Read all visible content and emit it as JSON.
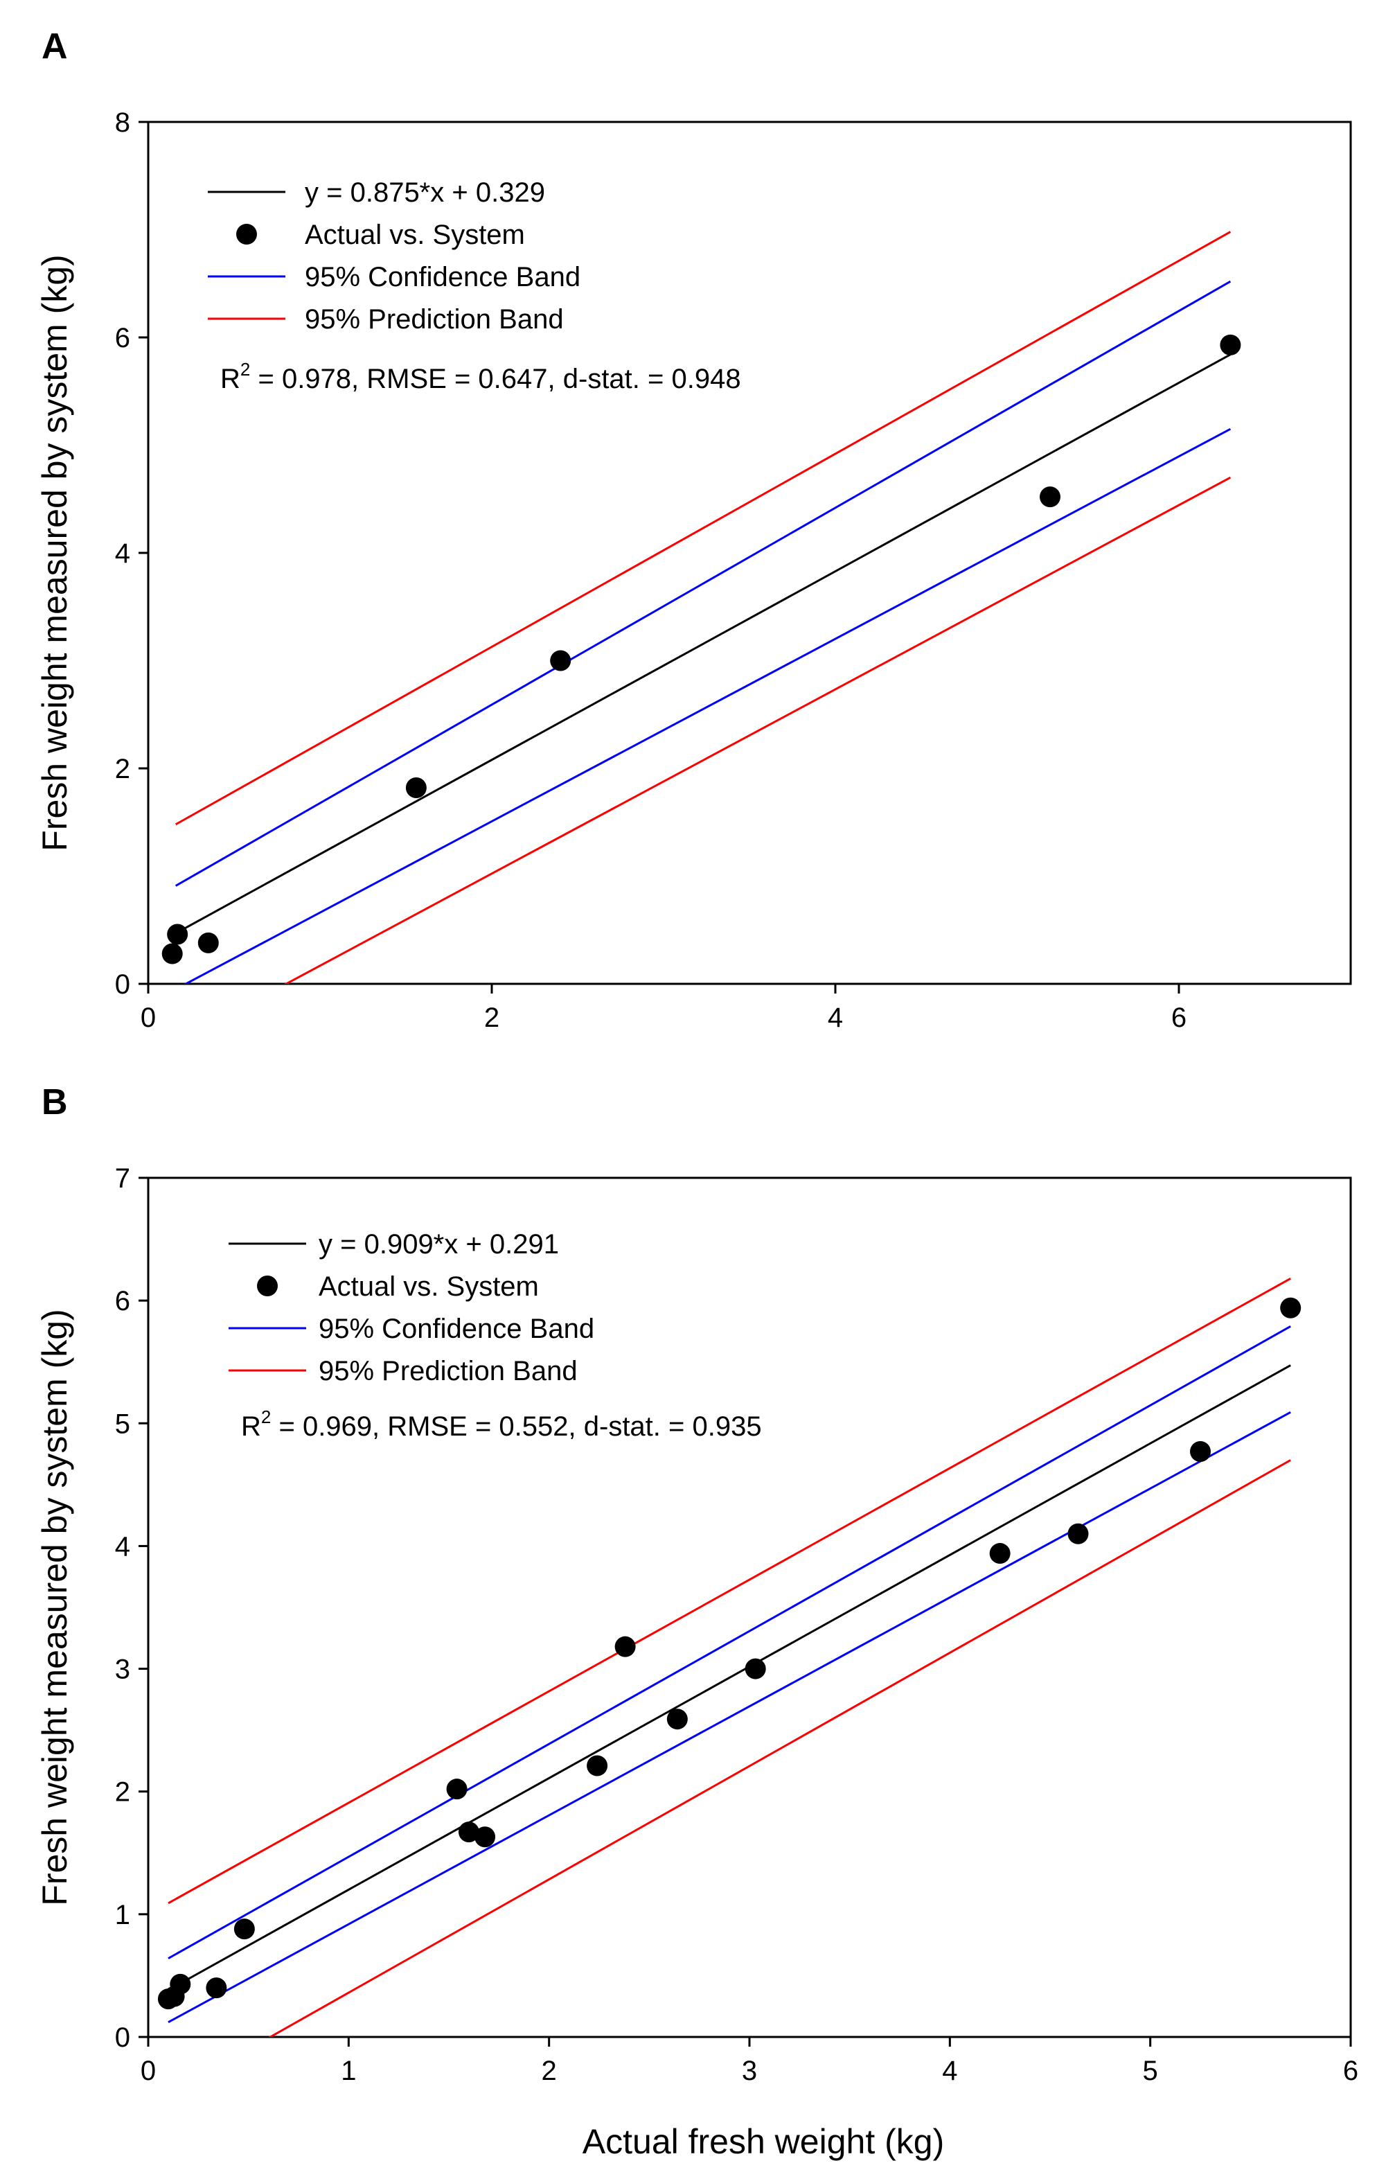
{
  "chart_data": [
    {
      "panel_label": "A",
      "type": "scatter",
      "xlabel": "",
      "ylabel": "Fresh weight measured by system (kg)",
      "xlim": [
        0,
        7
      ],
      "ylim": [
        0,
        8
      ],
      "xticks": [
        "0",
        "2",
        "4",
        "6"
      ],
      "xtick_values": [
        0,
        2,
        4,
        6
      ],
      "yticks": [
        "0",
        "2",
        "4",
        "6",
        "8"
      ],
      "ytick_values": [
        0,
        2,
        4,
        6,
        8
      ],
      "grid": false,
      "points": {
        "x": [
          0.14,
          0.17,
          0.35,
          1.56,
          2.4,
          5.25,
          6.3
        ],
        "y": [
          0.28,
          0.46,
          0.38,
          1.82,
          3.0,
          4.52,
          5.93
        ]
      },
      "fit": {
        "slope": 0.875,
        "intercept": 0.329,
        "x_range": [
          0.16,
          6.3
        ]
      },
      "confidence_band": {
        "upper": {
          "x": [
            0.16,
            6.3
          ],
          "y": [
            0.91,
            6.52
          ]
        },
        "lower": {
          "x": [
            0.16,
            6.3
          ],
          "y": [
            -0.05,
            5.15
          ]
        }
      },
      "prediction_band": {
        "upper": {
          "x": [
            0.16,
            6.3
          ],
          "y": [
            1.48,
            6.98
          ]
        },
        "lower": {
          "x": [
            0.16,
            6.3
          ],
          "y": [
            -0.55,
            4.7
          ]
        }
      },
      "legend": {
        "position": "top-left",
        "entries": [
          {
            "label": "y = 0.875*x + 0.329",
            "kind": "line",
            "color": "#000000"
          },
          {
            "label": "Actual vs. System",
            "kind": "marker",
            "color": "#000000"
          },
          {
            "label": "95% Confidence Band",
            "kind": "line",
            "color": "#0000ff"
          },
          {
            "label": "95% Prediction Band",
            "kind": "line",
            "color": "#ff0000"
          }
        ]
      },
      "stats": {
        "r_prefix": "R",
        "r_sup": "2",
        "rest": " = 0.978, RMSE = 0.647, d-stat. = 0.948"
      }
    },
    {
      "panel_label": "B",
      "type": "scatter",
      "xlabel": "Actual fresh weight (kg)",
      "ylabel": "Fresh weight measured by system (kg)",
      "xlim": [
        0,
        6
      ],
      "ylim": [
        0,
        7
      ],
      "xticks": [
        "0",
        "1",
        "2",
        "3",
        "4",
        "5",
        "6"
      ],
      "xtick_values": [
        0,
        1,
        2,
        3,
        4,
        5,
        6
      ],
      "yticks": [
        "0",
        "1",
        "2",
        "3",
        "4",
        "5",
        "6",
        "7"
      ],
      "ytick_values": [
        0,
        1,
        2,
        3,
        4,
        5,
        6,
        7
      ],
      "grid": false,
      "points": {
        "x": [
          0.1,
          0.13,
          0.16,
          0.34,
          0.48,
          1.54,
          1.6,
          1.68,
          2.24,
          2.38,
          2.64,
          3.03,
          4.25,
          4.64,
          5.25,
          5.7
        ],
        "y": [
          0.31,
          0.33,
          0.43,
          0.4,
          0.88,
          2.02,
          1.67,
          1.63,
          2.21,
          3.18,
          2.59,
          3.0,
          3.94,
          4.1,
          4.77,
          5.94
        ]
      },
      "fit": {
        "slope": 0.909,
        "intercept": 0.291,
        "x_range": [
          0.1,
          5.7
        ]
      },
      "confidence_band": {
        "upper": {
          "x": [
            0.1,
            5.7
          ],
          "y": [
            0.64,
            5.79
          ]
        },
        "lower": {
          "x": [
            0.1,
            5.7
          ],
          "y": [
            0.12,
            5.09
          ]
        }
      },
      "prediction_band": {
        "upper": {
          "x": [
            0.1,
            5.7
          ],
          "y": [
            1.09,
            6.18
          ]
        },
        "lower": {
          "x": [
            0.1,
            5.7
          ],
          "y": [
            -0.47,
            4.7
          ]
        }
      },
      "legend": {
        "position": "top-left",
        "entries": [
          {
            "label": "y = 0.909*x + 0.291",
            "kind": "line",
            "color": "#000000"
          },
          {
            "label": "Actual vs. System",
            "kind": "marker",
            "color": "#000000"
          },
          {
            "label": "95% Confidence Band",
            "kind": "line",
            "color": "#0000ff"
          },
          {
            "label": "95% Prediction Band",
            "kind": "line",
            "color": "#ff0000"
          }
        ]
      },
      "stats": {
        "r_prefix": "R",
        "r_sup": "2",
        "rest": " = 0.969, RMSE = 0.552, d-stat. = 0.935"
      }
    }
  ]
}
